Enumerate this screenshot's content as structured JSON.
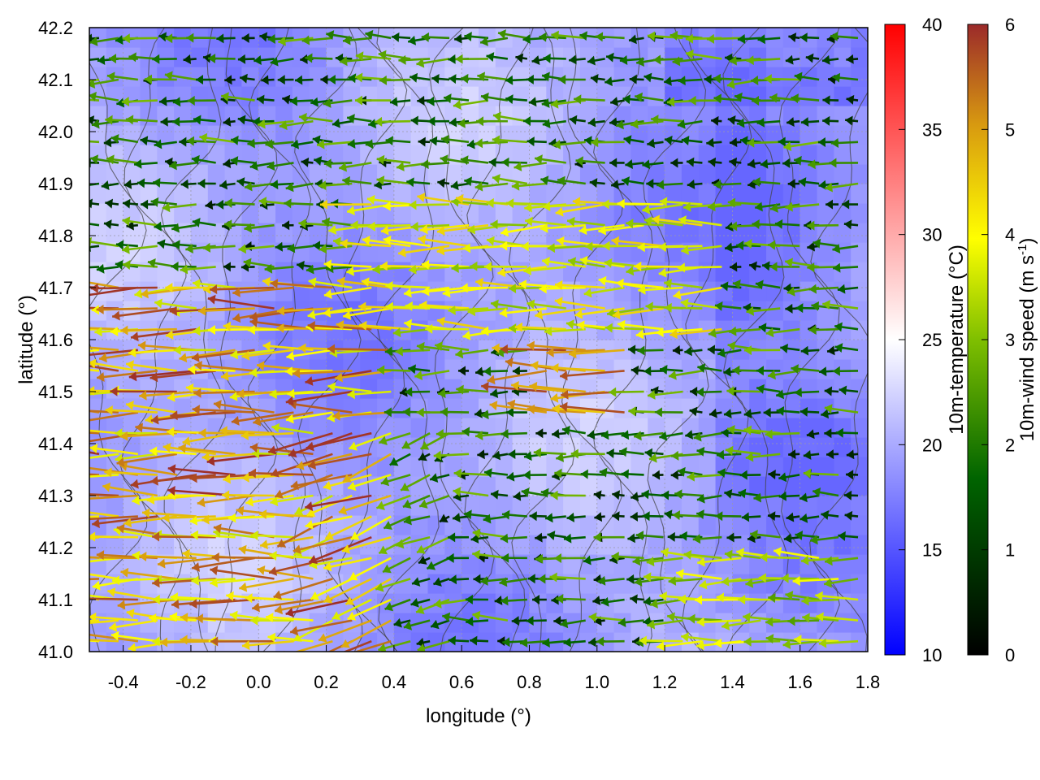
{
  "chart_data": {
    "type": "vector-field-heatmap",
    "xlabel": "longitude (°)",
    "ylabel": "latitude (°)",
    "xlim": [
      -0.5,
      1.8
    ],
    "ylim": [
      41.0,
      42.2
    ],
    "x_ticks": [
      "-0.4",
      "-0.2",
      "0.0",
      "0.2",
      "0.4",
      "0.6",
      "0.8",
      "1.0",
      "1.2",
      "1.4",
      "1.6",
      "1.8"
    ],
    "x_tick_values": [
      -0.4,
      -0.2,
      0.0,
      0.2,
      0.4,
      0.6,
      0.8,
      1.0,
      1.2,
      1.4,
      1.6,
      1.8
    ],
    "y_ticks": [
      "41.0",
      "41.1",
      "41.2",
      "41.3",
      "41.4",
      "41.5",
      "41.6",
      "41.7",
      "41.8",
      "41.9",
      "42.0",
      "42.1",
      "42.2"
    ],
    "y_tick_values": [
      41.0,
      41.1,
      41.2,
      41.3,
      41.4,
      41.5,
      41.6,
      41.7,
      41.8,
      41.9,
      42.0,
      42.1,
      42.2
    ],
    "grid": true,
    "temperature_colorbar": {
      "label": "10m-temperature (°C)",
      "range": [
        10,
        40
      ],
      "ticks": [
        "10",
        "15",
        "20",
        "25",
        "30",
        "35",
        "40"
      ],
      "tick_values": [
        10,
        15,
        20,
        25,
        30,
        35,
        40
      ],
      "colors": [
        "#0000ff",
        "#ffffff",
        "#ff0000"
      ]
    },
    "wind_colorbar": {
      "label_main": "10m-wind speed (m s",
      "label_sup": "-1",
      "label_end": ")",
      "range": [
        0,
        6
      ],
      "ticks": [
        "0",
        "1",
        "2",
        "3",
        "4",
        "5",
        "6"
      ],
      "tick_values": [
        0,
        1,
        2,
        3,
        4,
        5,
        6
      ],
      "colors": [
        "#000000",
        "#006400",
        "#7fbf00",
        "#ffff00",
        "#d89a10",
        "#9b2a2a"
      ]
    },
    "field_temperature_range": [
      16,
      23
    ],
    "dominant_wind_direction": "westward",
    "wind_regions": [
      {
        "lon": [
          -0.5,
          0.4
        ],
        "lat": [
          41.0,
          41.7
        ],
        "speed": [
          3.5,
          6.0
        ]
      },
      {
        "lon": [
          0.3,
          1.4
        ],
        "lat": [
          41.6,
          41.9
        ],
        "speed": [
          3.0,
          4.5
        ]
      },
      {
        "lon": [
          0.8,
          1.1
        ],
        "lat": [
          41.45,
          41.6
        ],
        "speed": [
          4.5,
          5.8
        ]
      },
      {
        "lon": [
          1.2,
          1.8
        ],
        "lat": [
          41.0,
          41.2
        ],
        "speed": [
          2.5,
          4.0
        ]
      },
      {
        "lon": [
          -0.5,
          1.8
        ],
        "lat": [
          41.0,
          42.2
        ],
        "speed": [
          0.5,
          3.0
        ]
      }
    ]
  }
}
